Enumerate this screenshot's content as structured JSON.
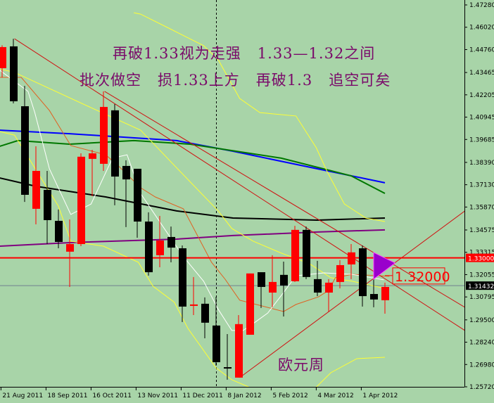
{
  "chart_data": {
    "type": "candlestick",
    "title": "",
    "colors": {
      "background": "#a8d4a8",
      "up": "#ff0000",
      "down": "#000000",
      "ma_blue": "#0000ff",
      "ma_green": "#007800",
      "ma_black": "#000000",
      "ma_purple": "#800080",
      "bands": "#ffff33",
      "orange": "#e06020",
      "white": "#ffffff",
      "trend": "#d01010",
      "level": "#ff0000",
      "bid": "#708090",
      "triangle": "#9900cc"
    },
    "ylim": [
      1.2572,
      1.4728
    ],
    "y_ticks": [
      "1.47280",
      "1.46020",
      "1.44760",
      "1.43465",
      "1.42205",
      "1.40945",
      "1.39685",
      "1.38390",
      "1.37130",
      "1.35870",
      "1.34575",
      "1.33315",
      "1.32055",
      "1.30795",
      "1.29500",
      "1.28240",
      "1.26980",
      "1.25720"
    ],
    "x_labels": [
      {
        "label": "21 Aug 2011",
        "index": -0.1
      },
      {
        "label": "18 Sep 2011",
        "index": 3.9
      },
      {
        "label": "16 Oct 2011",
        "index": 7.9
      },
      {
        "label": "13 Nov 2011",
        "index": 11.9
      },
      {
        "label": "11 Dec 2011",
        "index": 15.9
      },
      {
        "label": "8 Jan 2012",
        "index": 19.9
      },
      {
        "label": "5 Feb 2012",
        "index": 23.9
      },
      {
        "label": "4 Mar 2012",
        "index": 27.9
      },
      {
        "label": "1 Apr 2012",
        "index": 31.9
      }
    ],
    "candles": [
      [
        1.4371,
        1.45,
        1.4319,
        1.449
      ],
      [
        1.4494,
        1.4537,
        1.4172,
        1.4184
      ],
      [
        1.4156,
        1.4271,
        1.3616,
        1.3656
      ],
      [
        1.3577,
        1.393,
        1.3489,
        1.3791
      ],
      [
        1.3684,
        1.3791,
        1.3378,
        1.3513
      ],
      [
        1.3509,
        1.3573,
        1.3354,
        1.339
      ],
      [
        1.3335,
        1.3517,
        1.3136,
        1.3378
      ],
      [
        1.3378,
        1.389,
        1.3366,
        1.3871
      ],
      [
        1.3859,
        1.391,
        1.3648,
        1.389
      ],
      [
        1.3831,
        1.424,
        1.3791,
        1.4152
      ],
      [
        1.4133,
        1.4168,
        1.3597,
        1.3759
      ],
      [
        1.3819,
        1.3851,
        1.3474,
        1.3743
      ],
      [
        1.3803,
        1.3803,
        1.3414,
        1.3505
      ],
      [
        1.3505,
        1.3557,
        1.32,
        1.3219
      ],
      [
        1.3315,
        1.3537,
        1.3247,
        1.3398
      ],
      [
        1.3418,
        1.3477,
        1.3275,
        1.3358
      ],
      [
        1.3354,
        1.337,
        1.2938,
        1.3025
      ],
      [
        1.3029,
        1.3192,
        1.2977,
        1.3037
      ],
      [
        1.3041,
        1.3077,
        1.2846,
        1.2934
      ],
      [
        1.2918,
        1.308,
        1.2691,
        1.2711
      ],
      [
        1.2683,
        1.287,
        1.2612,
        1.2676
      ],
      [
        1.2624,
        1.2977,
        1.2624,
        1.2926
      ],
      [
        1.2866,
        1.3212,
        1.2866,
        1.3212
      ],
      [
        1.3219,
        1.3219,
        1.3017,
        1.3136
      ],
      [
        1.3104,
        1.3315,
        1.3021,
        1.3164
      ],
      [
        1.3204,
        1.3279,
        1.2969,
        1.3144
      ],
      [
        1.3168,
        1.3481,
        1.3164,
        1.3458
      ],
      [
        1.3458,
        1.3477,
        1.318,
        1.3192
      ],
      [
        1.318,
        1.3283,
        1.3084,
        1.3104
      ],
      [
        1.3104,
        1.318,
        1.2997,
        1.316
      ],
      [
        1.3164,
        1.3287,
        1.3128,
        1.3259
      ],
      [
        1.3263,
        1.3378,
        1.318,
        1.3331
      ],
      [
        1.3354,
        1.337,
        1.3025,
        1.3084
      ],
      [
        1.3096,
        1.3208,
        1.3021,
        1.3065
      ],
      [
        1.3061,
        1.316,
        1.2985,
        1.3136
      ]
    ],
    "indicators": [
      {
        "color": "ma_blue",
        "width": 2,
        "points": [
          [
            -0.2,
            1.4021
          ],
          [
            6,
            1.4001
          ],
          [
            15.5,
            1.3962
          ],
          [
            20.5,
            1.3902
          ],
          [
            28,
            1.3803
          ],
          [
            34,
            1.3724
          ]
        ]
      },
      {
        "color": "ma_green",
        "width": 2,
        "points": [
          [
            -0.2,
            1.393
          ],
          [
            1.4,
            1.3962
          ],
          [
            6,
            1.3942
          ],
          [
            11.7,
            1.3962
          ],
          [
            16.7,
            1.3942
          ],
          [
            24.8,
            1.3863
          ],
          [
            31,
            1.3763
          ],
          [
            34,
            1.3664
          ]
        ]
      },
      {
        "color": "ma_black",
        "width": 2,
        "points": [
          [
            -0.2,
            1.3751
          ],
          [
            3,
            1.3704
          ],
          [
            9.2,
            1.3644
          ],
          [
            15.5,
            1.3565
          ],
          [
            20.5,
            1.3525
          ],
          [
            28,
            1.3513
          ],
          [
            34,
            1.3525
          ]
        ]
      },
      {
        "color": "ma_purple",
        "width": 2,
        "points": [
          [
            -0.2,
            1.3366
          ],
          [
            6,
            1.3386
          ],
          [
            15.5,
            1.3406
          ],
          [
            20.5,
            1.3426
          ],
          [
            28,
            1.3446
          ],
          [
            34,
            1.3458
          ]
        ]
      },
      {
        "color": "bands",
        "width": 1,
        "points": [
          [
            11.7,
            1.4684
          ],
          [
            12.3,
            1.4676
          ],
          [
            14.8,
            1.4597
          ],
          [
            17.9,
            1.4498
          ],
          [
            19.2,
            1.4418
          ],
          [
            21.1,
            1.42
          ],
          [
            22.9,
            1.412
          ],
          [
            26.1,
            1.4101
          ],
          [
            27.9,
            1.3922
          ],
          [
            28.9,
            1.3783
          ],
          [
            30.4,
            1.3604
          ],
          [
            32.3,
            1.3525
          ],
          [
            34,
            1.3505
          ]
        ]
      },
      {
        "color": "bands",
        "width": 1,
        "points": [
          [
            -0.2,
            1.4367
          ],
          [
            1.1,
            1.4347
          ],
          [
            7.9,
            1.4148
          ],
          [
            12.3,
            1.4021
          ],
          [
            15.4,
            1.3815
          ],
          [
            19.2,
            1.3565
          ],
          [
            20.4,
            1.3466
          ],
          [
            22.3,
            1.3394
          ],
          [
            24.8,
            1.3327
          ],
          [
            27.3,
            1.3267
          ],
          [
            29.2,
            1.3188
          ],
          [
            31.1,
            1.3168
          ],
          [
            34,
            1.3128
          ]
        ]
      },
      {
        "color": "bands",
        "width": 1,
        "points": [
          [
            -0.2,
            1.4013
          ],
          [
            1.1,
            1.3993
          ],
          [
            5,
            1.3592
          ],
          [
            6.1,
            1.3394
          ],
          [
            9,
            1.3366
          ],
          [
            12.1,
            1.3275
          ],
          [
            13.4,
            1.314
          ],
          [
            15.3,
            1.3049
          ],
          [
            16.5,
            1.2902
          ],
          [
            19,
            1.2679
          ],
          [
            20.4,
            1.2612
          ],
          [
            23.6,
            1.2525
          ],
          [
            27.3,
            1.2533
          ],
          [
            29.2,
            1.2652
          ],
          [
            31.5,
            1.2731
          ],
          [
            34,
            1.2739
          ]
        ]
      },
      {
        "color": "orange",
        "width": 1,
        "points": [
          [
            -0.2,
            1.4319
          ],
          [
            1.7,
            1.4319
          ],
          [
            4.2,
            1.4132
          ],
          [
            6.1,
            1.3934
          ],
          [
            9.2,
            1.3882
          ],
          [
            10.4,
            1.3815
          ],
          [
            12.3,
            1.3696
          ],
          [
            13.6,
            1.3644
          ],
          [
            16.1,
            1.3577
          ],
          [
            18.6,
            1.3275
          ],
          [
            19.8,
            1.318
          ],
          [
            21.1,
            1.3061
          ],
          [
            25,
            1.2997
          ],
          [
            26.1,
            1.3037
          ],
          [
            28.1,
            1.308
          ],
          [
            29,
            1.3116
          ],
          [
            29.6,
            1.3188
          ],
          [
            31.1,
            1.3207
          ],
          [
            34.4,
            1.3196
          ]
        ]
      },
      {
        "color": "white",
        "width": 1,
        "points": [
          [
            -0.2,
            1.4359
          ],
          [
            2.3,
            1.424
          ],
          [
            2.9,
            1.4121
          ],
          [
            4.2,
            1.3803
          ],
          [
            6.1,
            1.3545
          ],
          [
            7.9,
            1.3604
          ],
          [
            9.8,
            1.3863
          ],
          [
            11.1,
            1.3882
          ],
          [
            12.3,
            1.3664
          ],
          [
            14.2,
            1.3485
          ],
          [
            16.1,
            1.3307
          ],
          [
            17.9,
            1.3168
          ],
          [
            19.2,
            1.3009
          ],
          [
            20.4,
            1.289
          ],
          [
            21.4,
            1.289
          ],
          [
            22.3,
            1.2929
          ],
          [
            23.6,
            1.2989
          ],
          [
            24.8,
            1.3088
          ],
          [
            26.1,
            1.3199
          ],
          [
            28.6,
            1.3215
          ],
          [
            31.1,
            1.3207
          ],
          [
            33.9,
            1.3176
          ]
        ]
      }
    ],
    "trendlines": [
      [
        [
          1.1,
          1.4537
        ],
        [
          41.1,
          1.289
        ]
      ],
      [
        [
          9.1,
          1.424
        ],
        [
          41.1,
          1.3021
        ]
      ],
      [
        [
          21.1,
          1.2624
        ],
        [
          41.1,
          1.3565
        ]
      ]
    ],
    "triangle": [
      [
        33,
        1.333
      ],
      [
        33,
        1.318
      ],
      [
        34.9,
        1.3271
      ]
    ],
    "separator_index": 19,
    "level_line": {
      "price": 1.33,
      "label": "1.33000"
    },
    "bid_line": {
      "price": 1.31432,
      "label": "1.31432"
    },
    "price_label": {
      "price": 1.32,
      "text": "1.32000"
    },
    "annotations": {
      "line1": "再破1.33视为走强   1.33—1.32之间",
      "line2": "批次做空   损1.33上方   再破1.3   追空可矣",
      "caption": "欧元周"
    }
  }
}
